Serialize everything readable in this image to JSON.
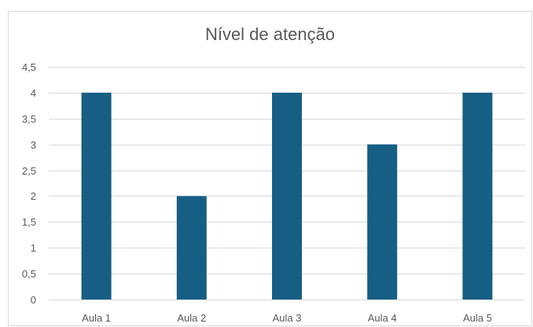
{
  "chart_data": {
    "type": "bar",
    "title": "Nível de atenção",
    "categories": [
      "Aula 1",
      "Aula 2",
      "Aula 3",
      "Aula 4",
      "Aula 5"
    ],
    "values": [
      4,
      2,
      4,
      3,
      4
    ],
    "ylim": [
      0,
      4.5
    ],
    "yticks": [
      "0",
      "0,5",
      "1",
      "1,5",
      "2",
      "2,5",
      "3",
      "3,5",
      "4",
      "4,5"
    ],
    "xlabel": "",
    "ylabel": "",
    "grid": true,
    "legend": "none",
    "colors": {
      "bar": "#175e84",
      "grid": "#d9d9d9",
      "text": "#595959",
      "border": "#d9d9d9"
    }
  }
}
